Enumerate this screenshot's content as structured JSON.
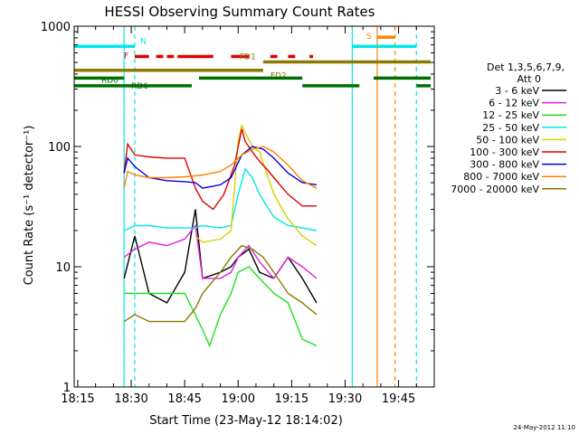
{
  "chart_data": {
    "type": "line",
    "title": "HESSI Observing Summary Count Rates",
    "xlabel": "Start Time (23-May-12 18:14:02)",
    "ylabel": "Count Rate (s⁻¹ detector⁻¹)",
    "y_scale": "log",
    "ylim": [
      1,
      1000
    ],
    "xlim": [
      "18:14",
      "19:55"
    ],
    "x_ticks": [
      "18:15",
      "18:30",
      "18:45",
      "19:00",
      "19:15",
      "19:30",
      "19:45"
    ],
    "y_ticks": [
      "1",
      "10",
      "100",
      "1000"
    ],
    "grid": false,
    "legend_position": "right",
    "legend_header": [
      "Det 1,3,5,6,7,9,",
      "Att 0"
    ],
    "date_stamp": "24-May-2012 11:10",
    "series": [
      {
        "name": "3 - 6 keV",
        "color": "#000000",
        "x": [
          "18:28",
          "18:31",
          "18:35",
          "18:40",
          "18:45",
          "18:48",
          "18:50",
          "18:55",
          "18:58",
          "19:00",
          "19:03",
          "19:06",
          "19:10",
          "19:14",
          "19:18",
          "19:22"
        ],
        "y": [
          8,
          18,
          6,
          5,
          9,
          30,
          8,
          9,
          10,
          12,
          14,
          9,
          8,
          12,
          8,
          5
        ]
      },
      {
        "name": "6 - 12 keV",
        "color": "#e020e0",
        "x": [
          "18:28",
          "18:31",
          "18:35",
          "18:40",
          "18:45",
          "18:48",
          "18:50",
          "18:55",
          "18:58",
          "19:00",
          "19:03",
          "19:06",
          "19:10",
          "19:14",
          "19:18",
          "19:22"
        ],
        "y": [
          12,
          14,
          16,
          15,
          17,
          22,
          8,
          8,
          9,
          12,
          15,
          11,
          8,
          12,
          10,
          8
        ]
      },
      {
        "name": "12 - 25 keV",
        "color": "#20e020",
        "x": [
          "18:28",
          "18:31",
          "18:35",
          "18:40",
          "18:45",
          "18:50",
          "18:52",
          "18:55",
          "18:58",
          "19:00",
          "19:03",
          "19:06",
          "19:10",
          "19:14",
          "19:18",
          "19:22"
        ],
        "y": [
          6,
          6,
          6,
          6,
          6,
          3,
          2.2,
          4,
          6,
          9,
          10,
          8,
          6,
          5,
          2.5,
          2.2
        ]
      },
      {
        "name": "25 - 50 keV",
        "color": "#00e8e8",
        "x": [
          "18:28",
          "18:31",
          "18:35",
          "18:40",
          "18:45",
          "18:48",
          "18:50",
          "18:55",
          "18:58",
          "19:00",
          "19:02",
          "19:04",
          "19:06",
          "19:08",
          "19:10",
          "19:14",
          "19:18",
          "19:22"
        ],
        "y": [
          20,
          22,
          22,
          21,
          21,
          21,
          22,
          21,
          22,
          40,
          65,
          55,
          40,
          32,
          26,
          22,
          21,
          20
        ]
      },
      {
        "name": "50 - 100 keV",
        "color": "#d8d000",
        "x": [
          "18:48",
          "18:50",
          "18:55",
          "18:58",
          "19:00",
          "19:01",
          "19:02",
          "19:04",
          "19:06",
          "19:08",
          "19:10",
          "19:14",
          "19:18",
          "19:22"
        ],
        "y": [
          18,
          16,
          17,
          20,
          110,
          150,
          130,
          100,
          90,
          60,
          40,
          25,
          18,
          15
        ]
      },
      {
        "name": "100 - 300 keV",
        "color": "#e00000",
        "x": [
          "18:28",
          "18:29",
          "18:31",
          "18:35",
          "18:40",
          "18:45",
          "18:48",
          "18:50",
          "18:53",
          "18:56",
          "18:59",
          "19:01",
          "19:02",
          "19:04",
          "19:06",
          "19:08",
          "19:10",
          "19:14",
          "19:18",
          "19:22"
        ],
        "y": [
          60,
          105,
          85,
          82,
          80,
          80,
          45,
          35,
          30,
          40,
          70,
          140,
          110,
          90,
          75,
          65,
          55,
          40,
          32,
          32
        ]
      },
      {
        "name": "300 - 800 keV",
        "color": "#0000e0",
        "x": [
          "18:28",
          "18:29",
          "18:31",
          "18:35",
          "18:40",
          "18:45",
          "18:48",
          "18:50",
          "18:55",
          "18:58",
          "19:01",
          "19:04",
          "19:07",
          "19:10",
          "19:14",
          "19:18",
          "19:22"
        ],
        "y": [
          60,
          80,
          68,
          55,
          52,
          51,
          50,
          45,
          48,
          55,
          85,
          100,
          95,
          80,
          60,
          50,
          48
        ]
      },
      {
        "name": "800 - 7000 keV",
        "color": "#ff8000",
        "x": [
          "18:28",
          "18:29",
          "18:31",
          "18:35",
          "18:40",
          "18:45",
          "18:48",
          "18:50",
          "18:55",
          "18:58",
          "19:01",
          "19:04",
          "19:07",
          "19:10",
          "19:14",
          "19:18",
          "19:22"
        ],
        "y": [
          45,
          62,
          58,
          55,
          55,
          56,
          57,
          58,
          62,
          70,
          85,
          95,
          100,
          90,
          70,
          52,
          45
        ]
      },
      {
        "name": "7000 - 20000 keV",
        "color": "#8a7a00",
        "x": [
          "18:28",
          "18:31",
          "18:35",
          "18:40",
          "18:45",
          "18:48",
          "18:50",
          "18:55",
          "18:58",
          "19:01",
          "19:04",
          "19:07",
          "19:10",
          "19:14",
          "19:18",
          "19:22"
        ],
        "y": [
          3.5,
          4,
          3.5,
          3.5,
          3.5,
          4.5,
          6,
          9,
          12,
          15,
          14,
          12,
          9,
          6,
          5,
          4
        ]
      }
    ],
    "flag_bars": [
      {
        "label": "N",
        "color": "#00e8e8",
        "level": 680,
        "segments": [
          [
            "18:14",
            "18:31"
          ],
          [
            "19:32",
            "19:50"
          ]
        ],
        "dashed": false
      },
      {
        "label": "S",
        "color": "#ff8000",
        "level": 810,
        "segments": [
          [
            "19:39",
            "19:44"
          ]
        ],
        "dashed": false
      },
      {
        "label": "F",
        "color": "#e00000",
        "level": 560,
        "segments": [
          [
            "18:31",
            "18:35"
          ],
          [
            "18:37",
            "18:39"
          ],
          [
            "18:40",
            "18:42"
          ],
          [
            "18:43",
            "18:53"
          ],
          [
            "18:58",
            "19:03"
          ],
          [
            "19:09",
            "19:11"
          ],
          [
            "19:14",
            "19:16"
          ],
          [
            "19:20",
            "19:21"
          ]
        ],
        "dashed": false
      },
      {
        "label": "FD1",
        "color": "#8a7a00",
        "level": 505,
        "segments": [
          [
            "19:07",
            "19:54"
          ]
        ],
        "dashed": false
      },
      {
        "label": "FD2",
        "color": "#8a7a00",
        "level": 430,
        "segments": [
          [
            "18:14",
            "19:07"
          ]
        ],
        "dashed": false
      },
      {
        "label": "RD0",
        "color": "#006e00",
        "level": 370,
        "segments": [
          [
            "18:14",
            "18:28"
          ],
          [
            "18:49",
            "19:18"
          ],
          [
            "19:38",
            "19:54"
          ]
        ],
        "dashed": false
      },
      {
        "label": "RD6",
        "color": "#006e00",
        "level": 320,
        "segments": [
          [
            "18:14",
            "18:47"
          ],
          [
            "19:18",
            "19:34"
          ],
          [
            "19:50",
            "19:54"
          ]
        ],
        "dashed": false
      }
    ],
    "vertical_markers": [
      {
        "time": "18:31",
        "color": "#00e8e8",
        "style": "dashed"
      },
      {
        "time": "19:32",
        "color": "#00e8e8",
        "style": "solid"
      },
      {
        "time": "19:50",
        "color": "#00e8e8",
        "style": "dashed"
      },
      {
        "time": "19:39",
        "color": "#ff8000",
        "style": "solid"
      },
      {
        "time": "19:44",
        "color": "#ff8000",
        "style": "dashed"
      },
      {
        "time": "18:28",
        "color": "#00e8e8",
        "style": "solid"
      }
    ]
  }
}
